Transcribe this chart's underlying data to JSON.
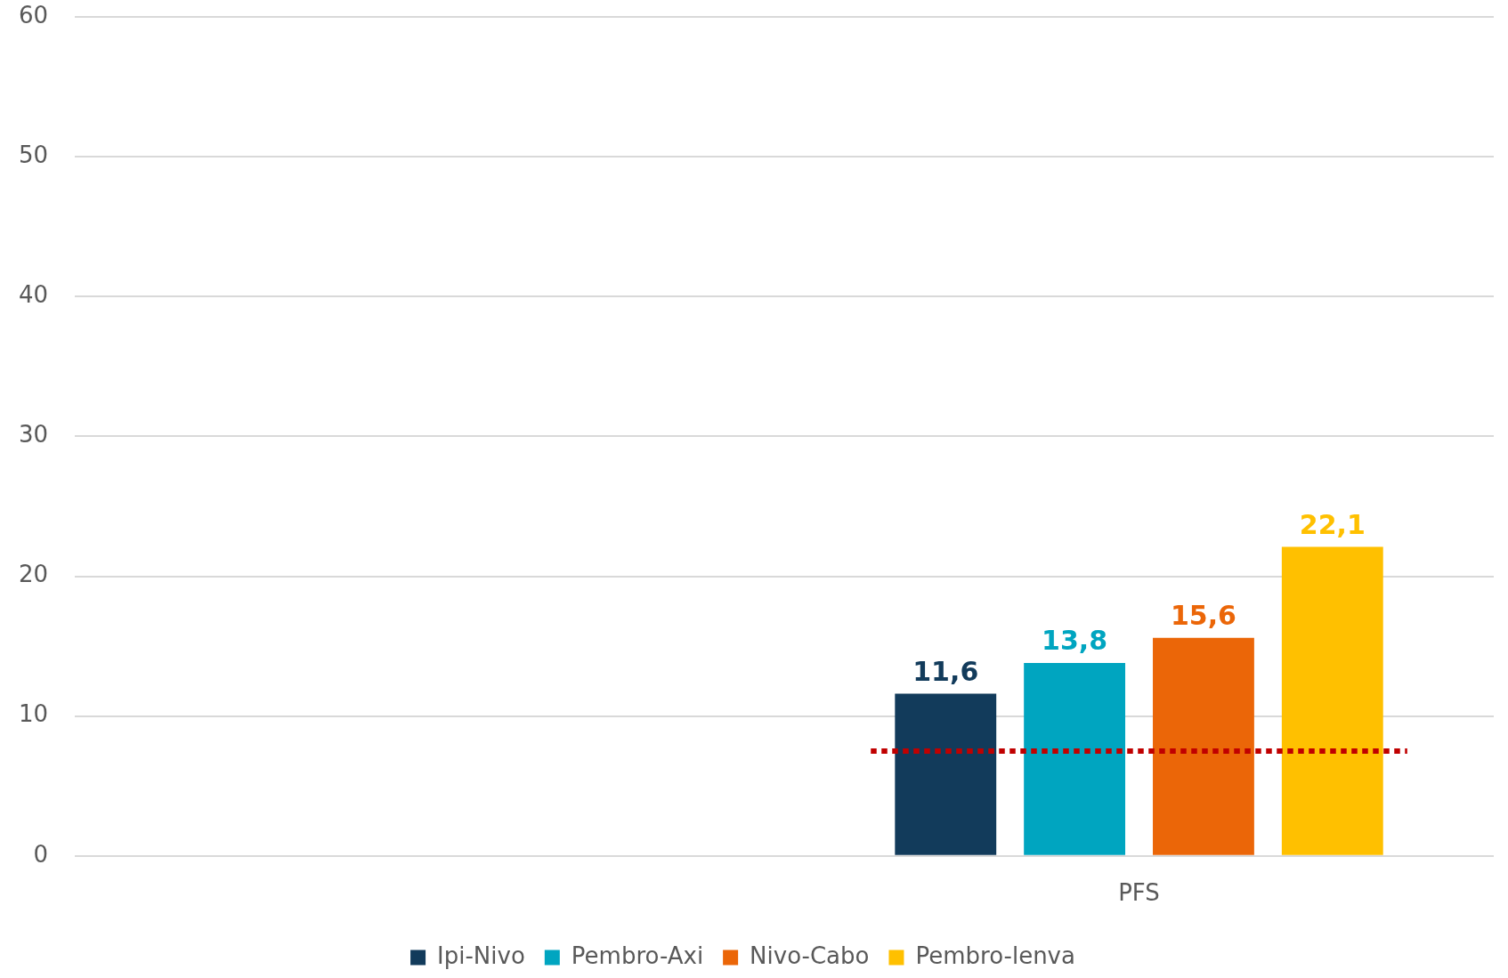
{
  "chart_data": {
    "type": "bar",
    "categories": [
      null,
      "PFS"
    ],
    "series": [
      {
        "name": "Ipi-Nivo",
        "color": "#123b5b",
        "values": [
          null,
          11.6
        ],
        "value_labels": [
          null,
          "11,6"
        ]
      },
      {
        "name": "Pembro-Axi",
        "color": "#00a5c0",
        "values": [
          null,
          13.8
        ],
        "value_labels": [
          null,
          "13,8"
        ]
      },
      {
        "name": "Nivo-Cabo",
        "color": "#eb6608",
        "values": [
          null,
          15.6
        ],
        "value_labels": [
          null,
          "15,6"
        ]
      },
      {
        "name": "Pembro-lenva",
        "color": "#ffc000",
        "values": [
          null,
          22.1
        ],
        "value_labels": [
          null,
          "22,1"
        ]
      }
    ],
    "ylim": [
      0,
      60
    ],
    "yticks": [
      0,
      10,
      20,
      30,
      40,
      50,
      60
    ],
    "grid": "y",
    "legend": "bottom",
    "ref_lines": [
      {
        "axis": "y",
        "value": 7.5,
        "color": "#c00000",
        "line_style": "dotted"
      }
    ]
  }
}
